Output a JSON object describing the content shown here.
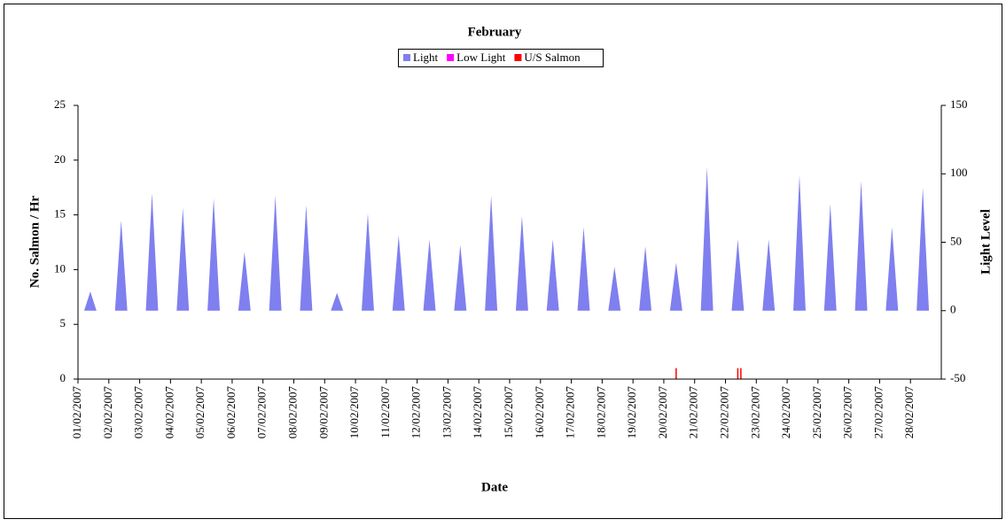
{
  "chart_data": {
    "type": "area",
    "title": "February",
    "x_label": "Date",
    "y_label": "No. Salmon / Hr",
    "y2_label": "Light Level",
    "xlim": [
      0,
      28
    ],
    "xticks": [
      {
        "value": 0,
        "label": "01/02/2007"
      },
      {
        "value": 1,
        "label": "02/02/2007"
      },
      {
        "value": 2,
        "label": "03/02/2007"
      },
      {
        "value": 3,
        "label": "04/02/2007"
      },
      {
        "value": 4,
        "label": "05/02/2007"
      },
      {
        "value": 5,
        "label": "06/02/2007"
      },
      {
        "value": 6,
        "label": "07/02/2007"
      },
      {
        "value": 7,
        "label": "08/02/2007"
      },
      {
        "value": 8,
        "label": "09/02/2007"
      },
      {
        "value": 9,
        "label": "10/02/2007"
      },
      {
        "value": 10,
        "label": "11/02/2007"
      },
      {
        "value": 11,
        "label": "12/02/2007"
      },
      {
        "value": 12,
        "label": "13/02/2007"
      },
      {
        "value": 13,
        "label": "14/02/2007"
      },
      {
        "value": 14,
        "label": "15/02/2007"
      },
      {
        "value": 15,
        "label": "16/02/2007"
      },
      {
        "value": 16,
        "label": "17/02/2007"
      },
      {
        "value": 17,
        "label": "18/02/2007"
      },
      {
        "value": 18,
        "label": "19/02/2007"
      },
      {
        "value": 19,
        "label": "20/02/2007"
      },
      {
        "value": 20,
        "label": "21/02/2007"
      },
      {
        "value": 21,
        "label": "22/02/2007"
      },
      {
        "value": 22,
        "label": "23/02/2007"
      },
      {
        "value": 23,
        "label": "24/02/2007"
      },
      {
        "value": 24,
        "label": "25/02/2007"
      },
      {
        "value": 25,
        "label": "26/02/2007"
      },
      {
        "value": 26,
        "label": "27/02/2007"
      },
      {
        "value": 27,
        "label": "28/02/2007"
      }
    ],
    "ylim": [
      0,
      25
    ],
    "yticks": [
      0,
      5,
      10,
      15,
      20,
      25
    ],
    "y2lim": [
      -50,
      150
    ],
    "y2ticks": [
      -50,
      0,
      50,
      100,
      150
    ],
    "series": [
      {
        "name": "Light",
        "color": "#7f7fef",
        "type": "area",
        "axis": "y2",
        "x": [
          0.2,
          0.4,
          0.6,
          1.2,
          1.4,
          1.6,
          2.2,
          2.4,
          2.6,
          3.2,
          3.4,
          3.6,
          4.2,
          4.4,
          4.6,
          5.2,
          5.4,
          5.6,
          6.2,
          6.4,
          6.6,
          7.2,
          7.4,
          7.6,
          8.2,
          8.4,
          8.6,
          9.2,
          9.4,
          9.6,
          10.2,
          10.4,
          10.6,
          11.2,
          11.4,
          11.6,
          12.2,
          12.4,
          12.6,
          13.2,
          13.4,
          13.6,
          14.2,
          14.4,
          14.6,
          15.2,
          15.4,
          15.6,
          16.2,
          16.4,
          16.6,
          17.2,
          17.4,
          17.6,
          18.2,
          18.4,
          18.6,
          19.2,
          19.4,
          19.6,
          20.2,
          20.4,
          20.6,
          21.2,
          21.4,
          21.6,
          22.2,
          22.4,
          22.6,
          23.2,
          23.4,
          23.6,
          24.2,
          24.4,
          24.6,
          25.2,
          25.4,
          25.6,
          26.2,
          26.4,
          26.6,
          27.2,
          27.4,
          27.6
        ],
        "values": [
          0,
          14,
          0,
          0,
          66,
          0,
          0,
          86,
          0,
          0,
          75,
          0,
          0,
          82,
          0,
          0,
          43,
          0,
          0,
          84,
          0,
          0,
          77,
          0,
          0,
          13,
          0,
          0,
          71,
          0,
          0,
          55,
          0,
          0,
          52,
          0,
          0,
          48,
          0,
          0,
          84,
          0,
          0,
          69,
          0,
          0,
          52,
          0,
          0,
          61,
          0,
          0,
          32,
          0,
          0,
          47,
          0,
          0,
          35,
          0,
          0,
          105,
          0,
          0,
          52,
          0,
          0,
          52,
          0,
          0,
          99,
          0,
          0,
          78,
          0,
          0,
          95,
          0,
          0,
          61,
          0,
          0,
          90,
          0
        ]
      },
      {
        "name": "Low Light",
        "color": "#ff00ff",
        "type": "area",
        "axis": "y2",
        "x": [],
        "values": []
      },
      {
        "name": "U/S Salmon",
        "color": "#ff0000",
        "type": "bar",
        "axis": "y",
        "x": [
          19.4,
          21.4,
          21.5
        ],
        "values": [
          1,
          1,
          1
        ]
      }
    ]
  }
}
